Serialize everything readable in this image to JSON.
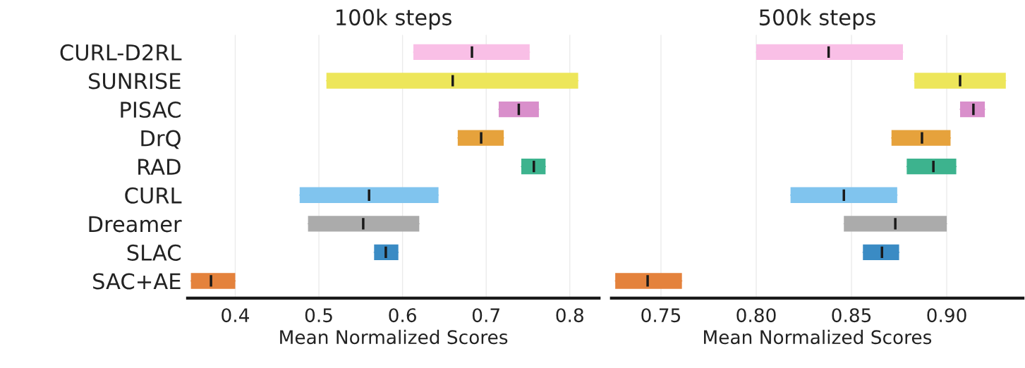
{
  "chart_data": [
    {
      "type": "box",
      "orientation": "horizontal",
      "title": "100k steps",
      "xlabel": "Mean Normalized Scores",
      "categories": [
        "CURL-D2RL",
        "SUNRISE",
        "PISAC",
        "DrQ",
        "RAD",
        "CURL",
        "Dreamer",
        "SLAC",
        "SAC+AE"
      ],
      "colors": [
        "#f9bfe6",
        "#ede65a",
        "#d98fcb",
        "#e6a23c",
        "#3db38e",
        "#80c4ee",
        "#ababab",
        "#3a8bc4",
        "#e4823c"
      ],
      "boxes": [
        {
          "low": 0.613,
          "q1": 0.613,
          "median": 0.683,
          "q3": 0.752,
          "high": 0.752
        },
        {
          "low": 0.509,
          "q1": 0.509,
          "median": 0.66,
          "q3": 0.81,
          "high": 0.81
        },
        {
          "low": 0.715,
          "q1": 0.715,
          "median": 0.739,
          "q3": 0.763,
          "high": 0.763
        },
        {
          "low": 0.666,
          "q1": 0.666,
          "median": 0.694,
          "q3": 0.721,
          "high": 0.721
        },
        {
          "low": 0.742,
          "q1": 0.742,
          "median": 0.757,
          "q3": 0.771,
          "high": 0.771
        },
        {
          "low": 0.477,
          "q1": 0.477,
          "median": 0.56,
          "q3": 0.643,
          "high": 0.643
        },
        {
          "low": 0.487,
          "q1": 0.487,
          "median": 0.553,
          "q3": 0.62,
          "high": 0.62
        },
        {
          "low": 0.566,
          "q1": 0.566,
          "median": 0.58,
          "q3": 0.595,
          "high": 0.595
        },
        {
          "low": 0.347,
          "q1": 0.347,
          "median": 0.371,
          "q3": 0.4,
          "high": 0.4
        }
      ],
      "xlim": [
        0.343,
        0.835
      ],
      "xticks": [
        0.4,
        0.5,
        0.6,
        0.7,
        0.8
      ],
      "grid": "x"
    },
    {
      "type": "box",
      "orientation": "horizontal",
      "title": "500k steps",
      "xlabel": "Mean Normalized Scores",
      "categories": [
        null,
        null,
        null,
        null,
        null,
        null,
        null,
        null,
        null
      ],
      "colors": [
        "#f9bfe6",
        "#ede65a",
        "#d98fcb",
        "#e6a23c",
        "#3db38e",
        "#80c4ee",
        "#ababab",
        "#3a8bc4",
        "#e4823c"
      ],
      "boxes": [
        {
          "low": 0.8,
          "q1": 0.8,
          "median": 0.838,
          "q3": 0.877,
          "high": 0.877
        },
        {
          "low": 0.883,
          "q1": 0.883,
          "median": 0.907,
          "q3": 0.931,
          "high": 0.931
        },
        {
          "low": 0.907,
          "q1": 0.907,
          "median": 0.914,
          "q3": 0.92,
          "high": 0.92
        },
        {
          "low": 0.871,
          "q1": 0.871,
          "median": 0.887,
          "q3": 0.902,
          "high": 0.902
        },
        {
          "low": 0.879,
          "q1": 0.879,
          "median": 0.893,
          "q3": 0.905,
          "high": 0.905
        },
        {
          "low": 0.818,
          "q1": 0.818,
          "median": 0.846,
          "q3": 0.874,
          "high": 0.874
        },
        {
          "low": 0.846,
          "q1": 0.846,
          "median": 0.873,
          "q3": 0.9,
          "high": 0.9
        },
        {
          "low": 0.856,
          "q1": 0.856,
          "median": 0.866,
          "q3": 0.875,
          "high": 0.875
        },
        {
          "low": 0.726,
          "q1": 0.726,
          "median": 0.743,
          "q3": 0.761,
          "high": 0.761
        }
      ],
      "xlim": [
        0.724,
        0.94
      ],
      "xticks": [
        {
          "value": 0.75,
          "label": "0.75"
        },
        {
          "value": 0.8,
          "label": "0.80"
        },
        {
          "value": 0.85,
          "label": "0.85"
        },
        {
          "value": 0.9,
          "label": "0.90"
        }
      ],
      "grid": "x",
      "tick_labels": "x"
    }
  ]
}
